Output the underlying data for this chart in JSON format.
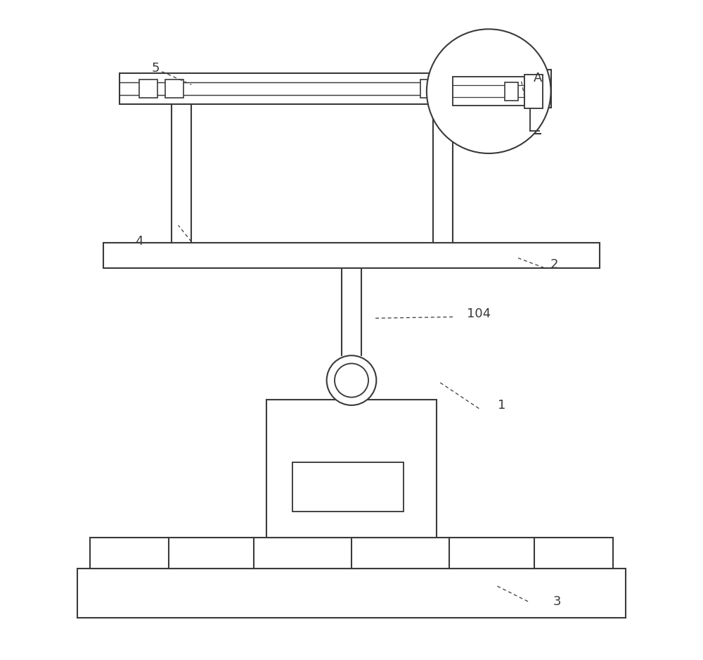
{
  "bg_color": "#ffffff",
  "line_color": "#3a3a3a",
  "line_width": 1.5,
  "fig_width": 10.0,
  "fig_height": 9.38,
  "labels": {
    "1": [
      0.72,
      0.38,
      0.68,
      0.32
    ],
    "2": [
      0.82,
      0.595,
      0.78,
      0.555
    ],
    "3": [
      0.82,
      0.085,
      0.76,
      0.055
    ],
    "4": [
      0.18,
      0.62,
      0.26,
      0.55
    ],
    "5": [
      0.2,
      0.895,
      0.26,
      0.865
    ],
    "104": [
      0.72,
      0.52,
      0.63,
      0.5
    ],
    "A": [
      0.78,
      0.88,
      0.74,
      0.845
    ]
  }
}
